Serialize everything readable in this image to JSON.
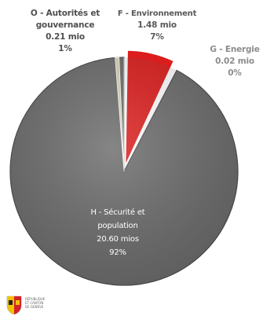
{
  "chart_data": {
    "type": "pie",
    "slices": [
      {
        "name": "H - Sécurité et population",
        "amount": "20.60 mios",
        "percent": "92%",
        "value": 20.6,
        "color": "#6b6b6b"
      },
      {
        "name": "O - Autorités et gouvernance",
        "amount": "0.21 mio",
        "percent": "1%",
        "value": 0.21,
        "color": "#d7d3b3"
      },
      {
        "name": "F - Environnement",
        "amount": "1.48 mio",
        "percent": "7%",
        "value": 1.48,
        "color": "#dc1d1d"
      },
      {
        "name": "G - Energie",
        "amount": "0.02 mio",
        "percent": "0%",
        "value": 0.02,
        "color": "#a8a8a8"
      }
    ],
    "labels": {
      "O": {
        "line1": "O - Autorités et",
        "line2": "gouvernance",
        "amount": "0.21 mio",
        "percent": "1%"
      },
      "F": {
        "line1": "F - Environnement",
        "amount": "1.48 mio",
        "percent": "7%"
      },
      "G": {
        "line1": "G - Energie",
        "amount": "0.02 mio",
        "percent": "0%"
      },
      "H": {
        "line1": "H - Sécurité et",
        "line2": "population",
        "amount": "20.60 mios",
        "percent": "92%"
      }
    },
    "legend": "none"
  },
  "logo": {
    "line1": "RÉPUBLIQUE",
    "line2": "ET CANTON",
    "line3": "DE GENÈVE",
    "shield_colors": {
      "red": "#d3232a",
      "yellow": "#f2c200"
    }
  }
}
